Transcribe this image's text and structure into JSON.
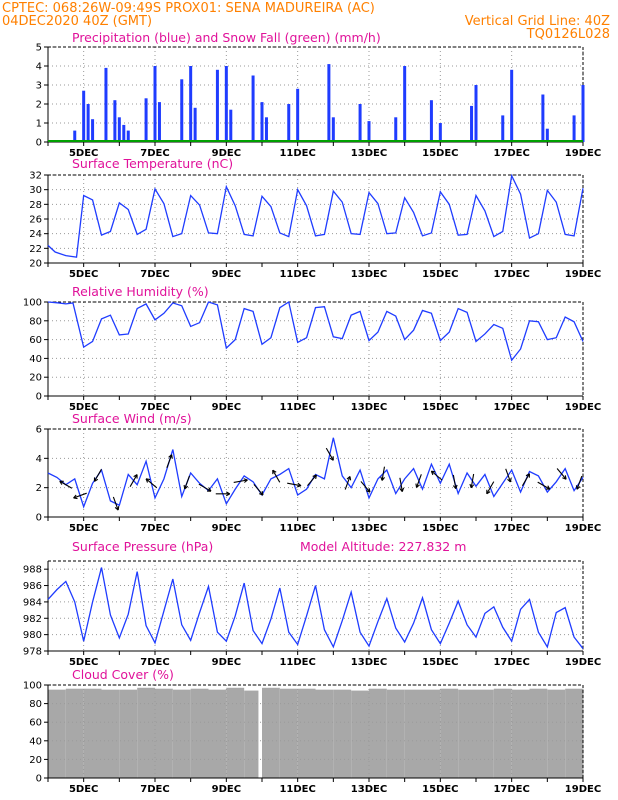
{
  "header": {
    "line1_left": "CPTEC:   068:26W-09:49S   PROX01: SENA MADUREIRA (AC)",
    "line2_left": "04DEC2020 40Z (GMT)",
    "line2_right": "Vertical Grid Line: 40Z",
    "line3_right": "TQ0126L028"
  },
  "colors": {
    "header": "#ff8000",
    "panel_title": "#e0129a",
    "precipitation": "#1f3cff",
    "snowfall": "#00a000",
    "line": "#1f3cff",
    "wind_arrow": "#000000",
    "cloud": "#a8a8a8"
  },
  "x_axis": {
    "start": "04DEC2020 00Z",
    "end": "19DEC2020 00Z",
    "tick_labels": [
      "5DEC",
      "7DEC",
      "9DEC",
      "11DEC",
      "13DEC",
      "15DEC",
      "17DEC",
      "19DEC"
    ]
  },
  "chart_data": [
    {
      "type": "bar",
      "title": "Precipitation (blue) and Snow Fall (green) (mm/h)",
      "ylim": [
        0,
        5
      ],
      "yticks": [
        "0",
        "1",
        "2",
        "3",
        "4",
        "5"
      ],
      "grid": true,
      "series": [
        {
          "name": "Precipitation",
          "x": [
            "04DEC 18Z",
            "05DEC 00Z",
            "05DEC 03Z",
            "05DEC 06Z",
            "05DEC 15Z",
            "05DEC 21Z",
            "06DEC 00Z",
            "06DEC 03Z",
            "06DEC 06Z",
            "06DEC 18Z",
            "07DEC 00Z",
            "07DEC 03Z",
            "07DEC 18Z",
            "08DEC 00Z",
            "08DEC 03Z",
            "08DEC 18Z",
            "09DEC 00Z",
            "09DEC 03Z",
            "09DEC 18Z",
            "10DEC 00Z",
            "10DEC 03Z",
            "10DEC 18Z",
            "11DEC 00Z",
            "11DEC 21Z",
            "12DEC 00Z",
            "12DEC 18Z",
            "13DEC 00Z",
            "13DEC 18Z",
            "14DEC 00Z",
            "14DEC 18Z",
            "15DEC 00Z",
            "15DEC 21Z",
            "16DEC 00Z",
            "16DEC 18Z",
            "17DEC 00Z",
            "17DEC 21Z",
            "18DEC 00Z",
            "18DEC 18Z",
            "19DEC 00Z"
          ],
          "values": [
            0.6,
            2.7,
            2.0,
            1.2,
            3.9,
            2.2,
            1.3,
            0.9,
            0.6,
            2.3,
            4.0,
            2.1,
            3.3,
            4.0,
            1.8,
            3.8,
            4.0,
            1.7,
            3.5,
            2.1,
            1.3,
            2.0,
            2.8,
            4.1,
            1.3,
            2.0,
            1.1,
            1.3,
            4.0,
            2.2,
            1.0,
            1.9,
            3.0,
            1.4,
            3.8,
            2.5,
            0.7,
            1.4,
            3.0
          ]
        },
        {
          "name": "Snow Fall",
          "x": [
            "04DEC 00Z",
            "19DEC 00Z"
          ],
          "values": [
            0,
            0
          ]
        }
      ]
    },
    {
      "type": "line",
      "title": "Surface Temperature (nC)",
      "ylim": [
        20,
        32
      ],
      "yticks": [
        "20",
        "22",
        "24",
        "26",
        "28",
        "30",
        "32"
      ],
      "grid": true,
      "series": [
        {
          "name": "Temperature",
          "x": [
            4.0,
            4.2,
            4.5,
            4.8,
            5.0,
            5.25,
            5.5,
            5.75,
            6.0,
            6.25,
            6.5,
            6.75,
            7.0,
            7.25,
            7.5,
            7.75,
            8.0,
            8.25,
            8.5,
            8.75,
            9.0,
            9.25,
            9.5,
            9.75,
            10.0,
            10.25,
            10.5,
            10.75,
            11.0,
            11.25,
            11.5,
            11.75,
            12.0,
            12.25,
            12.5,
            12.75,
            13.0,
            13.25,
            13.5,
            13.75,
            14.0,
            14.25,
            14.5,
            14.75,
            15.0,
            15.25,
            15.5,
            15.75,
            16.0,
            16.25,
            16.5,
            16.75,
            17.0,
            17.25,
            17.5,
            17.75,
            18.0,
            18.25,
            18.5,
            18.75,
            19.0
          ],
          "values": [
            22.4,
            21.5,
            21.0,
            20.8,
            29.2,
            28.6,
            23.8,
            24.3,
            28.2,
            27.3,
            23.9,
            24.6,
            30.1,
            28.1,
            23.6,
            24.0,
            29.2,
            27.9,
            24.1,
            24.0,
            30.4,
            27.8,
            23.9,
            23.7,
            29.1,
            27.7,
            24.1,
            23.6,
            30.0,
            27.8,
            23.7,
            23.9,
            29.8,
            28.3,
            24.0,
            23.9,
            29.6,
            28.1,
            24.0,
            24.1,
            28.9,
            26.9,
            23.7,
            24.1,
            29.7,
            28.0,
            23.8,
            23.9,
            29.2,
            27.1,
            23.6,
            24.3,
            31.9,
            29.4,
            23.4,
            24.0,
            29.9,
            28.3,
            23.9,
            23.7,
            30.2
          ]
        }
      ]
    },
    {
      "type": "line",
      "title": "Relative Humidity (%)",
      "ylim": [
        0,
        100
      ],
      "yticks": [
        "0",
        "20",
        "40",
        "60",
        "80",
        "100"
      ],
      "grid": true,
      "series": [
        {
          "name": "Relative Humidity",
          "x": [
            4.0,
            4.3,
            4.5,
            4.7,
            5.0,
            5.25,
            5.5,
            5.75,
            6.0,
            6.25,
            6.5,
            6.75,
            7.0,
            7.25,
            7.5,
            7.75,
            8.0,
            8.25,
            8.5,
            8.75,
            9.0,
            9.25,
            9.5,
            9.75,
            10.0,
            10.25,
            10.5,
            10.75,
            11.0,
            11.25,
            11.5,
            11.75,
            12.0,
            12.25,
            12.5,
            12.75,
            13.0,
            13.25,
            13.5,
            13.75,
            14.0,
            14.25,
            14.5,
            14.75,
            15.0,
            15.25,
            15.5,
            15.75,
            16.0,
            16.25,
            16.5,
            16.75,
            17.0,
            17.25,
            17.5,
            17.75,
            18.0,
            18.25,
            18.5,
            18.75,
            19.0
          ],
          "values": [
            100,
            99,
            98,
            99,
            52,
            58,
            82,
            86,
            65,
            66,
            93,
            98,
            81,
            88,
            99,
            96,
            74,
            78,
            100,
            97,
            51,
            60,
            93,
            90,
            55,
            62,
            94,
            100,
            57,
            62,
            94,
            95,
            63,
            61,
            86,
            90,
            59,
            68,
            90,
            85,
            60,
            70,
            91,
            88,
            59,
            68,
            93,
            89,
            58,
            66,
            76,
            72,
            38,
            50,
            80,
            79,
            60,
            62,
            84,
            79,
            58
          ]
        }
      ]
    },
    {
      "type": "line",
      "title": "Surface Wind (m/s)",
      "ylim": [
        0,
        6
      ],
      "yticks": [
        "0",
        "2",
        "4",
        "6"
      ],
      "grid": true,
      "series": [
        {
          "name": "Wind Speed",
          "x": [
            4.0,
            4.25,
            4.5,
            4.75,
            5.0,
            5.25,
            5.5,
            5.75,
            6.0,
            6.25,
            6.5,
            6.75,
            7.0,
            7.25,
            7.5,
            7.75,
            8.0,
            8.25,
            8.5,
            8.75,
            9.0,
            9.25,
            9.5,
            9.75,
            10.0,
            10.25,
            10.5,
            10.75,
            11.0,
            11.25,
            11.5,
            11.75,
            12.0,
            12.25,
            12.5,
            12.75,
            13.0,
            13.25,
            13.5,
            13.75,
            14.0,
            14.25,
            14.5,
            14.75,
            15.0,
            15.25,
            15.5,
            15.75,
            16.0,
            16.25,
            16.5,
            16.75,
            17.0,
            17.25,
            17.5,
            17.75,
            18.0,
            18.25,
            18.5,
            18.75,
            19.0
          ],
          "values": [
            3.0,
            2.7,
            2.2,
            2.6,
            0.7,
            2.3,
            3.2,
            1.1,
            0.8,
            2.9,
            2.2,
            3.8,
            1.3,
            2.6,
            4.6,
            1.4,
            3.0,
            2.3,
            1.8,
            2.6,
            0.9,
            1.9,
            2.8,
            2.4,
            1.5,
            2.6,
            2.9,
            3.3,
            1.5,
            1.9,
            2.9,
            2.6,
            5.4,
            2.8,
            2.0,
            3.2,
            1.3,
            2.6,
            3.2,
            1.6,
            2.6,
            3.3,
            1.9,
            3.6,
            2.3,
            3.6,
            1.6,
            3.0,
            2.1,
            2.9,
            1.4,
            2.3,
            3.2,
            1.7,
            3.1,
            2.8,
            1.7,
            2.4,
            3.3,
            1.8,
            2.7
          ]
        }
      ],
      "wind_arrows": {
        "x": [
          4.5,
          4.9,
          5.4,
          5.9,
          6.4,
          6.9,
          7.4,
          7.9,
          8.4,
          8.9,
          9.4,
          9.9,
          10.4,
          10.9,
          11.4,
          11.9,
          12.4,
          12.9,
          13.4,
          13.9,
          14.4,
          14.9,
          15.4,
          15.9,
          16.4,
          16.9,
          17.4,
          17.9,
          18.4,
          18.9
        ],
        "direction_deg": [
          300,
          250,
          210,
          160,
          30,
          310,
          20,
          200,
          120,
          90,
          80,
          140,
          330,
          100,
          40,
          150,
          20,
          140,
          190,
          170,
          200,
          310,
          170,
          190,
          210,
          160,
          30,
          120,
          140,
          200
        ]
      }
    },
    {
      "type": "line",
      "title": "Surface Pressure (hPa)",
      "annotation": "Model Altitude: 227.832 m",
      "ylim": [
        978,
        989
      ],
      "yticks": [
        "978",
        "980",
        "982",
        "984",
        "986",
        "988"
      ],
      "grid": true,
      "series": [
        {
          "name": "Surface Pressure",
          "x": [
            4.0,
            4.25,
            4.5,
            4.75,
            5.0,
            5.25,
            5.5,
            5.75,
            6.0,
            6.25,
            6.5,
            6.75,
            7.0,
            7.25,
            7.5,
            7.75,
            8.0,
            8.25,
            8.5,
            8.75,
            9.0,
            9.25,
            9.5,
            9.75,
            10.0,
            10.25,
            10.5,
            10.75,
            11.0,
            11.25,
            11.5,
            11.75,
            12.0,
            12.25,
            12.5,
            12.75,
            13.0,
            13.25,
            13.5,
            13.75,
            14.0,
            14.25,
            14.5,
            14.75,
            15.0,
            15.25,
            15.5,
            15.75,
            16.0,
            16.25,
            16.5,
            16.75,
            17.0,
            17.25,
            17.5,
            17.75,
            18.0,
            18.25,
            18.5,
            18.75,
            19.0
          ],
          "values": [
            984.3,
            985.5,
            986.5,
            984.0,
            979.2,
            984.0,
            988.2,
            982.4,
            979.6,
            982.5,
            987.7,
            981.1,
            979.0,
            982.9,
            986.8,
            981.2,
            979.3,
            982.7,
            985.9,
            980.3,
            979.2,
            982.3,
            986.3,
            980.5,
            978.9,
            981.9,
            985.7,
            980.3,
            978.8,
            982.3,
            986.0,
            980.6,
            978.5,
            981.7,
            985.2,
            980.3,
            978.6,
            981.6,
            984.4,
            980.8,
            979.1,
            981.4,
            984.5,
            980.6,
            978.9,
            981.4,
            984.1,
            981.2,
            979.7,
            982.6,
            983.4,
            980.9,
            979.2,
            983.1,
            984.3,
            980.3,
            978.5,
            982.7,
            983.3,
            979.7,
            978.3
          ]
        }
      ]
    },
    {
      "type": "area",
      "title": "Cloud Cover (%)",
      "ylim": [
        0,
        100
      ],
      "yticks": [
        "0",
        "20",
        "40",
        "60",
        "80",
        "100"
      ],
      "grid": true,
      "series": [
        {
          "name": "Cloud Cover",
          "x": [
            4.0,
            4.5,
            5.0,
            5.5,
            6.0,
            6.5,
            7.0,
            7.5,
            8.0,
            8.5,
            9.0,
            9.5,
            9.9,
            10.0,
            10.5,
            11.0,
            11.5,
            12.0,
            12.5,
            13.0,
            13.5,
            14.0,
            14.5,
            15.0,
            15.5,
            16.0,
            16.5,
            17.0,
            17.5,
            18.0,
            18.5,
            19.0
          ],
          "values": [
            95,
            96,
            96,
            95,
            95,
            97,
            96,
            95,
            96,
            95,
            97,
            94,
            0,
            97,
            96,
            96,
            95,
            95,
            94,
            96,
            95,
            95,
            95,
            96,
            95,
            95,
            96,
            95,
            96,
            95,
            96,
            96
          ]
        }
      ]
    }
  ]
}
